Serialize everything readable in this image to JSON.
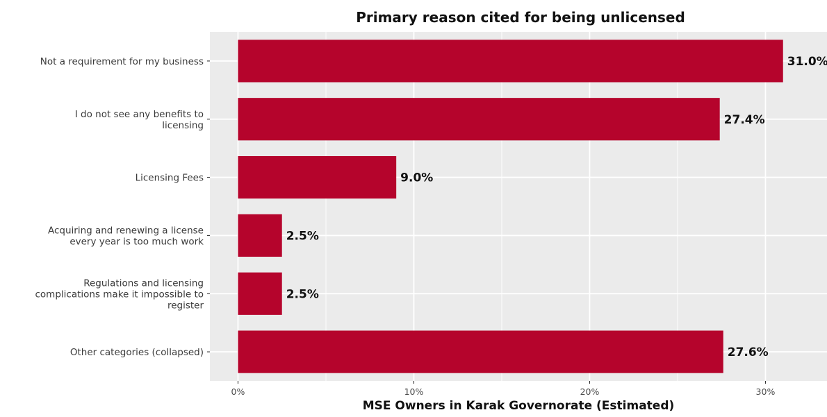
{
  "chart_data": {
    "type": "bar",
    "orientation": "horizontal",
    "title": "Primary reason cited for being unlicensed",
    "xlabel": "MSE Owners in Karak Governorate (Estimated)",
    "ylabel": "",
    "categories": [
      [
        "Not a requirement for my business"
      ],
      [
        "I do not see any benefits to",
        "licensing"
      ],
      [
        "Licensing Fees"
      ],
      [
        "Acquiring and renewing a license",
        "every year is too much work"
      ],
      [
        "Regulations and licensing",
        "complications make it impossible to",
        "register"
      ],
      [
        "Other categories (collapsed)"
      ]
    ],
    "values": [
      31.0,
      27.4,
      9.0,
      2.5,
      2.5,
      27.6
    ],
    "value_labels": [
      "31.0%",
      "27.4%",
      "9.0%",
      "2.5%",
      "2.5%",
      "27.6%"
    ],
    "xticks": [
      0,
      10,
      20,
      30
    ],
    "xtick_labels": [
      "0%",
      "10%",
      "20%",
      "30%"
    ],
    "xlim": [
      -1.6,
      33.5
    ],
    "grid": true,
    "legend": "none",
    "colors": {
      "bar": "#b5042c",
      "panel": "#ebebeb",
      "grid": "#ffffff"
    }
  }
}
